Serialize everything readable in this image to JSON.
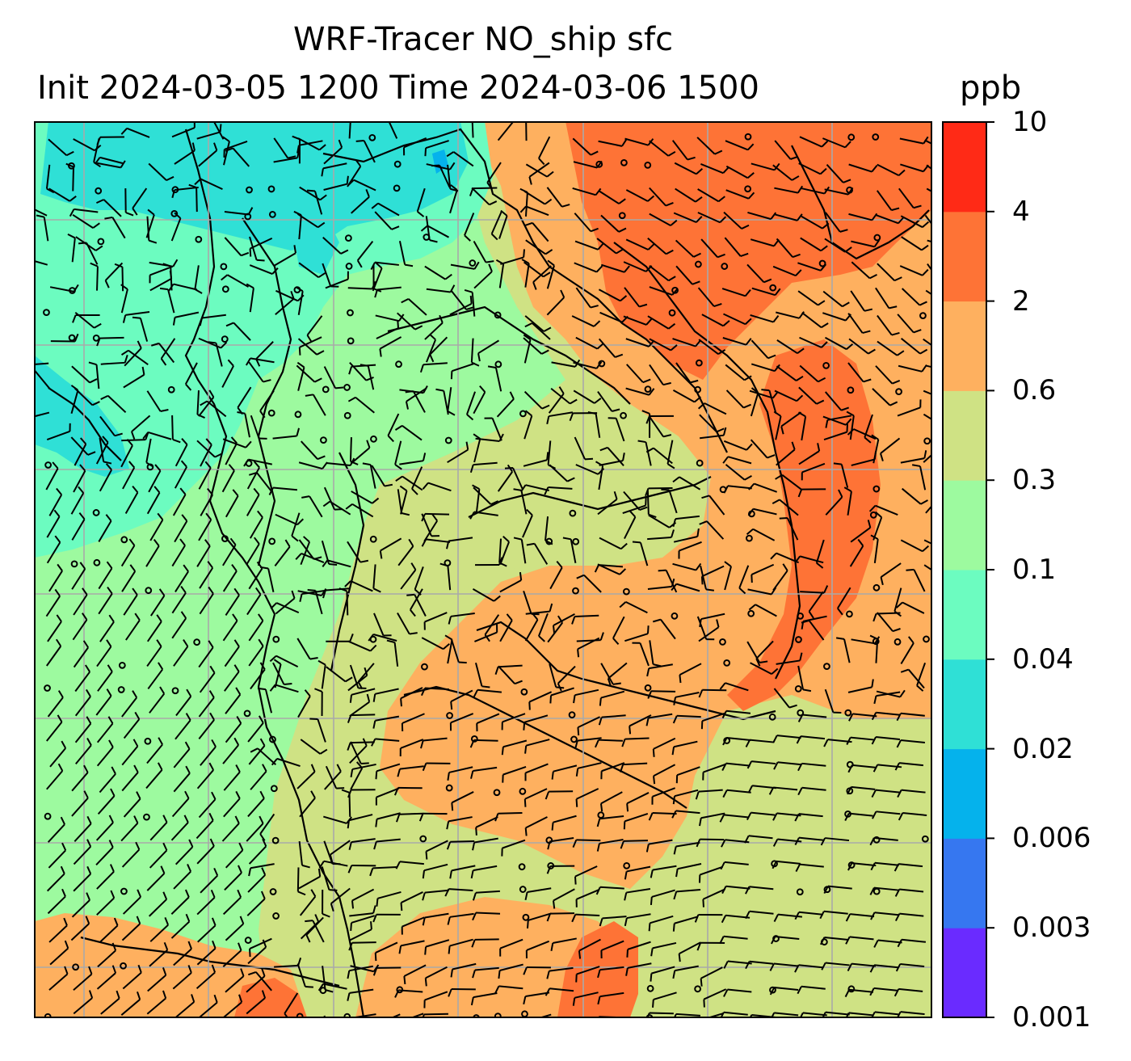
{
  "title": {
    "line1": "WRF-Tracer NO_ship sfc",
    "line2": "Init 2024-03-05 1200 Time 2024-03-06 1500",
    "unit": "ppb"
  },
  "colorbar": {
    "levels": [
      "0.001",
      "0.003",
      "0.006",
      "0.02",
      "0.04",
      "0.1",
      "0.3",
      "0.6",
      "2",
      "4",
      "10"
    ],
    "colors": [
      "#6a2bff",
      "#3677f0",
      "#05b2ec",
      "#2fe0d6",
      "#6cfcc0",
      "#9dfa9f",
      "#cfe284",
      "#feb05f",
      "#fe7336",
      "#ff2a16"
    ]
  },
  "map": {
    "field": "NO_ship surface concentration with wind barbs",
    "colors": {
      "frame": "#000000",
      "grid": "#a9a9a9",
      "coast": "#000000",
      "barb": "#000000"
    }
  }
}
